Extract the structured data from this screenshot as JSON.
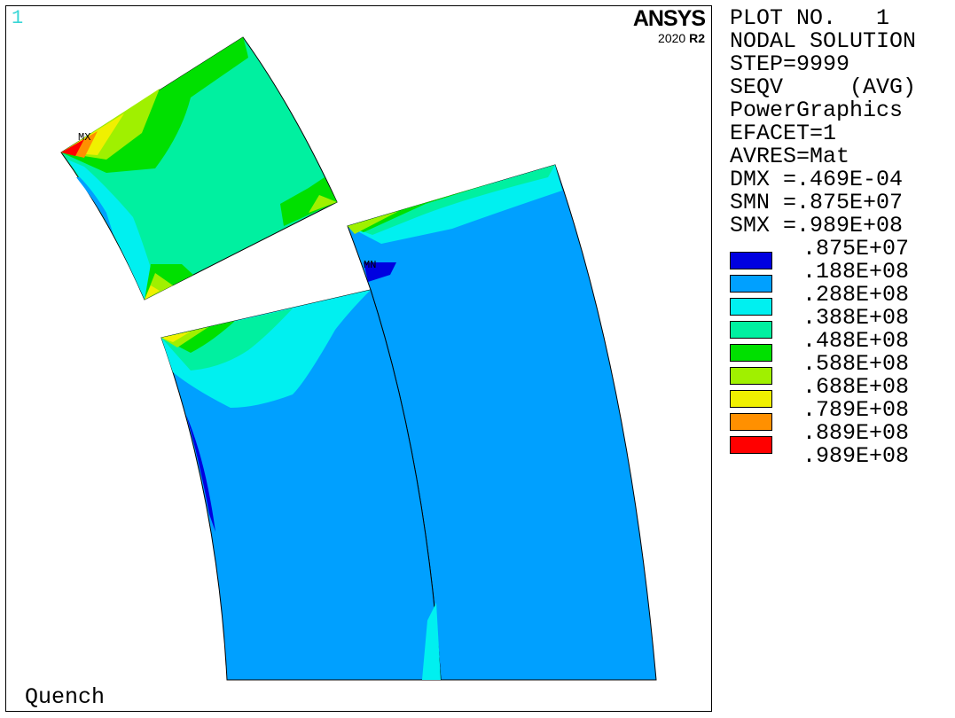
{
  "window": {
    "number": "1"
  },
  "brand": {
    "name": "ANSYS",
    "version": "2020",
    "release": "R2"
  },
  "title": "Quench",
  "info_lines": [
    "PLOT NO.   1",
    "NODAL SOLUTION",
    "STEP=9999",
    "SEQV     (AVG)",
    "PowerGraphics",
    "EFACET=1",
    "AVRES=Mat",
    "DMX =.469E-04",
    "SMN =.875E+07",
    "SMX =.989E+08"
  ],
  "legend": {
    "values": [
      ".875E+07",
      ".188E+08",
      ".288E+08",
      ".388E+08",
      ".488E+08",
      ".588E+08",
      ".688E+08",
      ".789E+08",
      ".889E+08",
      ".989E+08"
    ],
    "colors": [
      "#0000e0",
      "#00a0ff",
      "#00f0f0",
      "#00f0a0",
      "#00e000",
      "#a0f000",
      "#f0f000",
      "#ff9000",
      "#ff0000"
    ]
  },
  "markers": {
    "max": "MX",
    "min": "MN"
  }
}
